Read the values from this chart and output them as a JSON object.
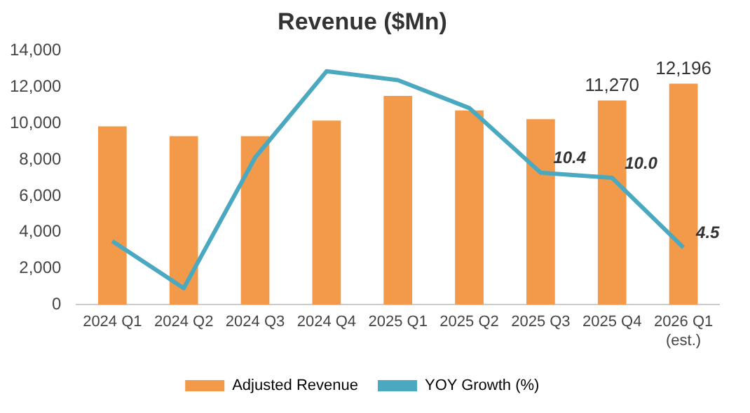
{
  "chart_data": {
    "type": "bar",
    "title": "Revenue ($Mn)",
    "categories": [
      "2024 Q1",
      "2024 Q2",
      "2024 Q3",
      "2024 Q4",
      "2025 Q1",
      "2025 Q2",
      "2025 Q3",
      "2025 Q4",
      "2026 Q1\n(est.)"
    ],
    "series": [
      {
        "name": "Adjusted Revenue",
        "color": "#f39a4a",
        "values": [
          9840,
          9300,
          9300,
          10160,
          11520,
          10720,
          10240,
          11270,
          12196
        ],
        "value_labels": [
          null,
          null,
          null,
          null,
          null,
          null,
          null,
          "11,270",
          "12,196"
        ]
      },
      {
        "name": "YOY Growth (%)",
        "type": "line",
        "axis": "y2",
        "color": "#4aa8c0",
        "values": [
          5.0,
          1.3,
          11.6,
          18.4,
          17.7,
          15.5,
          10.4,
          10.0,
          4.5
        ],
        "value_labels": [
          null,
          null,
          null,
          null,
          null,
          null,
          "10.4",
          "10.0",
          "4.5"
        ]
      }
    ],
    "ylim": [
      0,
      14000
    ],
    "yticks": [
      {
        "value": 0,
        "label": "0"
      },
      {
        "value": 2000,
        "label": "2,000"
      },
      {
        "value": 4000,
        "label": "4,000"
      },
      {
        "value": 6000,
        "label": "6,000"
      },
      {
        "value": 8000,
        "label": "8,000"
      },
      {
        "value": 10000,
        "label": "10,000"
      },
      {
        "value": 12000,
        "label": "12,000"
      },
      {
        "value": 14000,
        "label": "14,000"
      }
    ],
    "grid": false,
    "legend": "bottom",
    "marker": "none"
  }
}
